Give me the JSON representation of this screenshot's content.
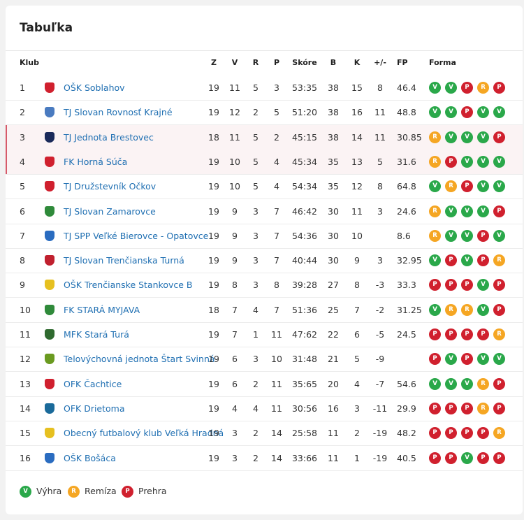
{
  "header": {
    "title": "Tabuľka"
  },
  "table": {
    "columns": [
      "Klub",
      "Z",
      "V",
      "R",
      "P",
      "Skóre",
      "B",
      "K",
      "+/-",
      "FP",
      "Forma"
    ],
    "rows": [
      {
        "rank": 1,
        "club": "OŠK Soblahov",
        "z": 19,
        "v": 11,
        "r": 5,
        "p": 3,
        "score": "53:35",
        "b": 38,
        "k": 15,
        "diff": 8,
        "fp": 46.4,
        "form": [
          "V",
          "V",
          "P",
          "R",
          "P"
        ]
      },
      {
        "rank": 2,
        "club": "TJ Slovan Rovnosť Krajné",
        "z": 19,
        "v": 12,
        "r": 2,
        "p": 5,
        "score": "51:20",
        "b": 38,
        "k": 16,
        "diff": 11,
        "fp": 48.8,
        "form": [
          "V",
          "V",
          "P",
          "V",
          "V"
        ]
      },
      {
        "rank": 3,
        "club": "TJ Jednota Brestovec",
        "z": 18,
        "v": 11,
        "r": 5,
        "p": 2,
        "score": "45:15",
        "b": 38,
        "k": 14,
        "diff": 11,
        "fp": 30.85,
        "form": [
          "R",
          "V",
          "V",
          "V",
          "P"
        ]
      },
      {
        "rank": 4,
        "club": "FK Horná Súča",
        "z": 19,
        "v": 10,
        "r": 5,
        "p": 4,
        "score": "45:34",
        "b": 35,
        "k": 13,
        "diff": 5,
        "fp": 31.6,
        "form": [
          "R",
          "P",
          "V",
          "V",
          "V"
        ]
      },
      {
        "rank": 5,
        "club": "TJ Družstevník Očkov",
        "z": 19,
        "v": 10,
        "r": 5,
        "p": 4,
        "score": "54:34",
        "b": 35,
        "k": 12,
        "diff": 8,
        "fp": 64.8,
        "form": [
          "V",
          "R",
          "P",
          "V",
          "V"
        ]
      },
      {
        "rank": 6,
        "club": "TJ Slovan Zamarovce",
        "z": 19,
        "v": 9,
        "r": 3,
        "p": 7,
        "score": "46:42",
        "b": 30,
        "k": 11,
        "diff": 3,
        "fp": 24.6,
        "form": [
          "R",
          "V",
          "V",
          "V",
          "P"
        ]
      },
      {
        "rank": 7,
        "club": "TJ SPP Veľké Bierovce - Opatovce",
        "z": 19,
        "v": 9,
        "r": 3,
        "p": 7,
        "score": "54:36",
        "b": 30,
        "k": 10,
        "diff": null,
        "fp": 8.6,
        "form": [
          "R",
          "V",
          "V",
          "P",
          "V"
        ]
      },
      {
        "rank": 8,
        "club": "TJ Slovan Trenčianska Turná",
        "z": 19,
        "v": 9,
        "r": 3,
        "p": 7,
        "score": "40:44",
        "b": 30,
        "k": 9,
        "diff": 3,
        "fp": 32.95,
        "form": [
          "V",
          "P",
          "V",
          "P",
          "R"
        ]
      },
      {
        "rank": 9,
        "club": "OŠK Trenčianske Stankovce B",
        "z": 19,
        "v": 8,
        "r": 3,
        "p": 8,
        "score": "39:28",
        "b": 27,
        "k": 8,
        "diff": -3,
        "fp": 33.3,
        "form": [
          "P",
          "P",
          "P",
          "V",
          "P"
        ]
      },
      {
        "rank": 10,
        "club": "FK STARÁ MYJAVA",
        "z": 18,
        "v": 7,
        "r": 4,
        "p": 7,
        "score": "51:36",
        "b": 25,
        "k": 7,
        "diff": -2,
        "fp": 31.25,
        "form": [
          "V",
          "R",
          "R",
          "V",
          "P"
        ]
      },
      {
        "rank": 11,
        "club": "MFK Stará Turá",
        "z": 19,
        "v": 7,
        "r": 1,
        "p": 11,
        "score": "47:62",
        "b": 22,
        "k": 6,
        "diff": -5,
        "fp": 24.5,
        "form": [
          "P",
          "P",
          "P",
          "P",
          "R"
        ]
      },
      {
        "rank": 12,
        "club": "Telovýchovná jednota Štart Svinná",
        "z": 19,
        "v": 6,
        "r": 3,
        "p": 10,
        "score": "31:48",
        "b": 21,
        "k": 5,
        "diff": -9,
        "fp": null,
        "form": [
          "P",
          "V",
          "P",
          "V",
          "V"
        ]
      },
      {
        "rank": 13,
        "club": "OFK Čachtice",
        "z": 19,
        "v": 6,
        "r": 2,
        "p": 11,
        "score": "35:65",
        "b": 20,
        "k": 4,
        "diff": -7,
        "fp": 54.6,
        "form": [
          "V",
          "V",
          "V",
          "R",
          "P"
        ]
      },
      {
        "rank": 14,
        "club": "OFK Drietoma",
        "z": 19,
        "v": 4,
        "r": 4,
        "p": 11,
        "score": "30:56",
        "b": 16,
        "k": 3,
        "diff": -11,
        "fp": 29.9,
        "form": [
          "P",
          "P",
          "P",
          "R",
          "P"
        ]
      },
      {
        "rank": 15,
        "club": "Obecný futbalový klub Veľká Hradná",
        "z": 19,
        "v": 3,
        "r": 2,
        "p": 14,
        "score": "25:58",
        "b": 11,
        "k": 2,
        "diff": -19,
        "fp": 48.2,
        "form": [
          "P",
          "P",
          "P",
          "P",
          "R"
        ]
      },
      {
        "rank": 16,
        "club": "OŠK Bošáca",
        "z": 19,
        "v": 3,
        "r": 2,
        "p": 14,
        "score": "33:66",
        "b": 11,
        "k": 1,
        "diff": -19,
        "fp": 40.5,
        "form": [
          "P",
          "P",
          "V",
          "P",
          "P"
        ]
      }
    ]
  },
  "form_colors": {
    "V": "#2aa84a",
    "R": "#f5a623",
    "P": "#d0202e"
  },
  "legend": [
    {
      "letter": "V",
      "label": "Výhra"
    },
    {
      "letter": "R",
      "label": "Remíza"
    },
    {
      "letter": "P",
      "label": "Prehra"
    }
  ]
}
